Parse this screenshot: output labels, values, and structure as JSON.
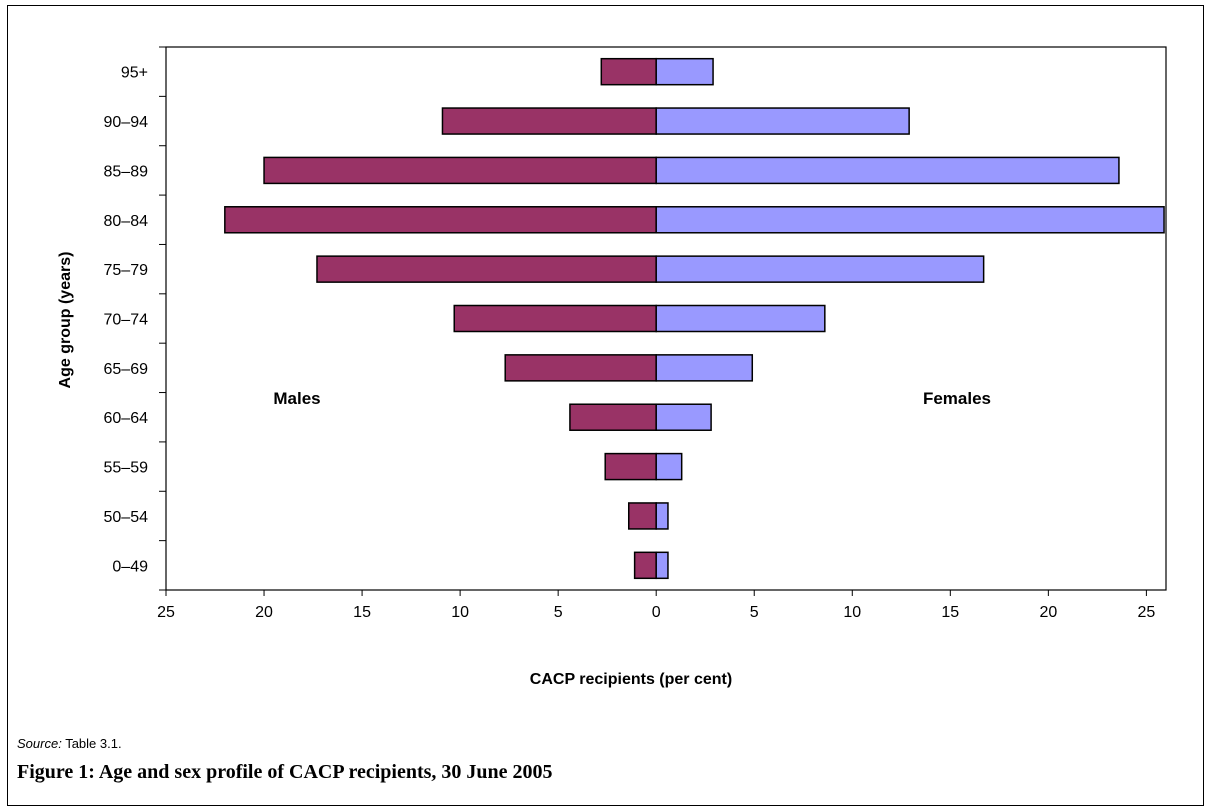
{
  "chart_data": {
    "type": "bar",
    "orientation": "horizontal",
    "layout": "population-pyramid",
    "categories": [
      "0–49",
      "50–54",
      "55–59",
      "60–64",
      "65–69",
      "70–74",
      "75–79",
      "80–84",
      "85–89",
      "90–94",
      "95+"
    ],
    "series": [
      {
        "name": "Males",
        "side": "left",
        "color": "#993366",
        "values": [
          1.1,
          1.4,
          2.6,
          4.4,
          7.7,
          10.3,
          17.3,
          22.0,
          20.0,
          10.9,
          2.8
        ]
      },
      {
        "name": "Females",
        "side": "right",
        "color": "#9999ff",
        "values": [
          0.6,
          0.6,
          1.3,
          2.8,
          4.9,
          8.6,
          16.7,
          25.9,
          23.6,
          12.9,
          2.9
        ]
      }
    ],
    "xlabel": "CACP recipients (per cent)",
    "ylabel": "Age group (years)",
    "xlim": [
      -25,
      26
    ],
    "x_ticks": [
      -25,
      -20,
      -15,
      -10,
      -5,
      0,
      5,
      10,
      15,
      20,
      25
    ],
    "x_tick_labels": [
      "25",
      "20",
      "15",
      "10",
      "5",
      "0",
      "5",
      "10",
      "15",
      "20",
      "25"
    ],
    "grid": false,
    "legend": "none (series labelled inside plot)"
  },
  "source": {
    "label": "Source:",
    "text": " Table 3.1."
  },
  "caption": "Figure 1: Age and sex profile of CACP recipients, 30 June 2005"
}
